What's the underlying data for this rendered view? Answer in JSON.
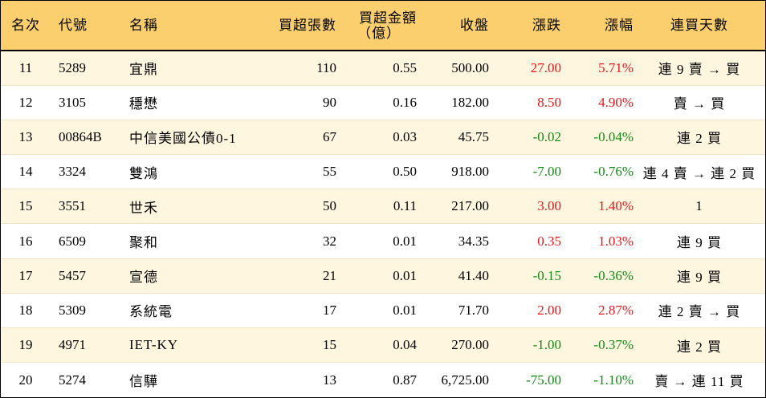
{
  "header": {
    "rank": "名次",
    "code": "代號",
    "name": "名稱",
    "net_buy_lots": "買超張數",
    "net_buy_amount_line1": "買超金額",
    "net_buy_amount_line2": "（億）",
    "close": "收盤",
    "change": "漲跌",
    "change_pct": "漲幅",
    "consecutive_days": "連買天數"
  },
  "colors": {
    "header_bg": "#fbcf6e",
    "odd_row_bg": "#fff6e0",
    "up": "#e8161b",
    "down": "#138a14"
  },
  "rows": [
    {
      "rank": "11",
      "code": "5289",
      "name": "宜鼎",
      "lots": "110",
      "amount": "0.55",
      "close": "500.00",
      "change": "27.00",
      "pct": "5.71%",
      "dir": "up",
      "days": "連 9 賣 → 買"
    },
    {
      "rank": "12",
      "code": "3105",
      "name": "穩懋",
      "lots": "90",
      "amount": "0.16",
      "close": "182.00",
      "change": "8.50",
      "pct": "4.90%",
      "dir": "up",
      "days": "賣 → 買"
    },
    {
      "rank": "13",
      "code": "00864B",
      "name": "中信美國公債0-1",
      "lots": "67",
      "amount": "0.03",
      "close": "45.75",
      "change": "-0.02",
      "pct": "-0.04%",
      "dir": "down",
      "days": "連 2 買"
    },
    {
      "rank": "14",
      "code": "3324",
      "name": "雙鴻",
      "lots": "55",
      "amount": "0.50",
      "close": "918.00",
      "change": "-7.00",
      "pct": "-0.76%",
      "dir": "down",
      "days": "連 4 賣 → 連 2 買"
    },
    {
      "rank": "15",
      "code": "3551",
      "name": "世禾",
      "lots": "50",
      "amount": "0.11",
      "close": "217.00",
      "change": "3.00",
      "pct": "1.40%",
      "dir": "up",
      "days": "1"
    },
    {
      "rank": "16",
      "code": "6509",
      "name": "聚和",
      "lots": "32",
      "amount": "0.01",
      "close": "34.35",
      "change": "0.35",
      "pct": "1.03%",
      "dir": "up",
      "days": "連 9 買"
    },
    {
      "rank": "17",
      "code": "5457",
      "name": "宣德",
      "lots": "21",
      "amount": "0.01",
      "close": "41.40",
      "change": "-0.15",
      "pct": "-0.36%",
      "dir": "down",
      "days": "連 9 買"
    },
    {
      "rank": "18",
      "code": "5309",
      "name": "系統電",
      "lots": "17",
      "amount": "0.01",
      "close": "71.70",
      "change": "2.00",
      "pct": "2.87%",
      "dir": "up",
      "days": "連 2 賣 → 買"
    },
    {
      "rank": "19",
      "code": "4971",
      "name": "IET-KY",
      "lots": "15",
      "amount": "0.04",
      "close": "270.00",
      "change": "-1.00",
      "pct": "-0.37%",
      "dir": "down",
      "days": "連 2 買"
    },
    {
      "rank": "20",
      "code": "5274",
      "name": "信驊",
      "lots": "13",
      "amount": "0.87",
      "close": "6,725.00",
      "change": "-75.00",
      "pct": "-1.10%",
      "dir": "down",
      "days": "賣 → 連 11 買"
    }
  ]
}
